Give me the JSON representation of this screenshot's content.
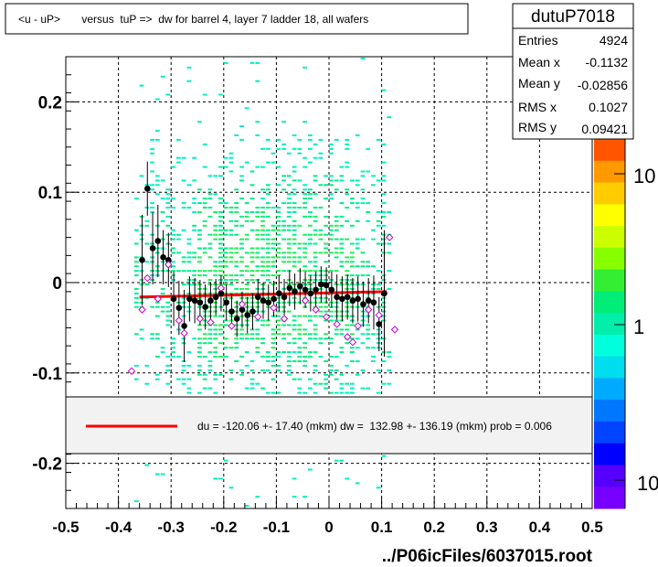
{
  "title": "<u - uP>       versus  tuP =>  dw for barrel 4, layer 7 ladder 18, all wafers",
  "stats": {
    "name": "dutuP7018",
    "rows": [
      {
        "label": "Entries",
        "value": "4924"
      },
      {
        "label": "Mean x",
        "value": "-0.1132"
      },
      {
        "label": "Mean y",
        "value": "-0.02856"
      },
      {
        "label": "RMS x",
        "value": "0.1027"
      },
      {
        "label": "RMS y",
        "value": "0.09421"
      }
    ]
  },
  "legend_text": "du = -120.06 +- 17.40 (mkm) dw =  132.98 +- 136.19 (mkm) prob = 0.006",
  "footer": "../P06icFiles/6037015.root",
  "colors": {
    "fit_line": "#ff0000",
    "profile_black": "#000000",
    "profile_magenta": "#cc00cc",
    "hist_cells": "#00ee88"
  },
  "chart_data": {
    "type": "scatter",
    "xlim": [
      -0.5,
      0.5
    ],
    "ylim": [
      -0.25,
      0.25
    ],
    "x_ticks": [
      "-0.5",
      "-0.4",
      "-0.3",
      "-0.2",
      "-0.1",
      "0",
      "0.1",
      "0.2",
      "0.3",
      "0.4",
      "0.5"
    ],
    "y_ticks": [
      "0.2",
      "0.1",
      "0",
      "-0.1",
      "-0.2"
    ],
    "y_tick_values": [
      0.2,
      0.1,
      0,
      -0.1,
      -0.2
    ],
    "grid": true,
    "z_scale": "log",
    "z_ticks": [
      "10",
      "1",
      "10"
    ],
    "histogram_region": {
      "x": [
        -0.37,
        0.12
      ],
      "y": [
        -0.25,
        0.25
      ]
    },
    "fit_line": {
      "x": [
        -0.36,
        0.11
      ],
      "y": [
        -0.016,
        -0.01
      ]
    },
    "profile_black": [
      {
        "x": -0.355,
        "y": 0.025,
        "err": 0.05
      },
      {
        "x": -0.345,
        "y": 0.104,
        "err": 0.03
      },
      {
        "x": -0.335,
        "y": 0.038,
        "err": 0.04
      },
      {
        "x": -0.325,
        "y": 0.046,
        "err": 0.04
      },
      {
        "x": -0.315,
        "y": 0.028,
        "err": 0.03
      },
      {
        "x": -0.305,
        "y": 0.025,
        "err": 0.03
      },
      {
        "x": -0.295,
        "y": -0.018,
        "err": 0.03
      },
      {
        "x": -0.285,
        "y": -0.028,
        "err": 0.03
      },
      {
        "x": -0.275,
        "y": -0.048,
        "err": 0.04
      },
      {
        "x": -0.265,
        "y": -0.018,
        "err": 0.025
      },
      {
        "x": -0.255,
        "y": -0.02,
        "err": 0.025
      },
      {
        "x": -0.245,
        "y": -0.022,
        "err": 0.025
      },
      {
        "x": -0.235,
        "y": -0.027,
        "err": 0.025
      },
      {
        "x": -0.225,
        "y": -0.02,
        "err": 0.02
      },
      {
        "x": -0.215,
        "y": -0.016,
        "err": 0.02
      },
      {
        "x": -0.205,
        "y": -0.012,
        "err": 0.02
      },
      {
        "x": -0.195,
        "y": -0.022,
        "err": 0.02
      },
      {
        "x": -0.185,
        "y": -0.032,
        "err": 0.02
      },
      {
        "x": -0.175,
        "y": -0.04,
        "err": 0.02
      },
      {
        "x": -0.165,
        "y": -0.03,
        "err": 0.02
      },
      {
        "x": -0.155,
        "y": -0.036,
        "err": 0.02
      },
      {
        "x": -0.145,
        "y": -0.032,
        "err": 0.02
      },
      {
        "x": -0.135,
        "y": -0.016,
        "err": 0.02
      },
      {
        "x": -0.125,
        "y": -0.02,
        "err": 0.02
      },
      {
        "x": -0.115,
        "y": -0.022,
        "err": 0.02
      },
      {
        "x": -0.105,
        "y": -0.018,
        "err": 0.02
      },
      {
        "x": -0.095,
        "y": -0.012,
        "err": 0.02
      },
      {
        "x": -0.085,
        "y": -0.016,
        "err": 0.02
      },
      {
        "x": -0.075,
        "y": -0.006,
        "err": 0.02
      },
      {
        "x": -0.065,
        "y": -0.01,
        "err": 0.02
      },
      {
        "x": -0.055,
        "y": -0.004,
        "err": 0.02
      },
      {
        "x": -0.045,
        "y": -0.008,
        "err": 0.02
      },
      {
        "x": -0.035,
        "y": -0.012,
        "err": 0.02
      },
      {
        "x": -0.025,
        "y": -0.008,
        "err": 0.02
      },
      {
        "x": -0.015,
        "y": -0.002,
        "err": 0.02
      },
      {
        "x": -0.005,
        "y": -0.003,
        "err": 0.02
      },
      {
        "x": 0.005,
        "y": -0.008,
        "err": 0.02
      },
      {
        "x": 0.015,
        "y": -0.016,
        "err": 0.025
      },
      {
        "x": 0.025,
        "y": -0.018,
        "err": 0.025
      },
      {
        "x": 0.035,
        "y": -0.016,
        "err": 0.025
      },
      {
        "x": 0.045,
        "y": -0.02,
        "err": 0.025
      },
      {
        "x": 0.055,
        "y": -0.018,
        "err": 0.025
      },
      {
        "x": 0.065,
        "y": -0.024,
        "err": 0.025
      },
      {
        "x": 0.075,
        "y": -0.02,
        "err": 0.025
      },
      {
        "x": 0.085,
        "y": -0.022,
        "err": 0.03
      },
      {
        "x": 0.095,
        "y": -0.046,
        "err": 0.03
      },
      {
        "x": 0.105,
        "y": -0.012,
        "err": 0.07
      }
    ],
    "profile_magenta": [
      {
        "x": -0.375,
        "y": -0.098
      },
      {
        "x": -0.355,
        "y": -0.03
      },
      {
        "x": -0.345,
        "y": 0.005
      },
      {
        "x": -0.325,
        "y": -0.018
      },
      {
        "x": -0.305,
        "y": 0.02
      },
      {
        "x": -0.285,
        "y": -0.042
      },
      {
        "x": -0.275,
        "y": -0.056
      },
      {
        "x": -0.245,
        "y": -0.04
      },
      {
        "x": -0.225,
        "y": -0.044
      },
      {
        "x": -0.205,
        "y": -0.006
      },
      {
        "x": -0.185,
        "y": -0.048
      },
      {
        "x": -0.165,
        "y": -0.024
      },
      {
        "x": -0.135,
        "y": -0.038
      },
      {
        "x": -0.105,
        "y": -0.028
      },
      {
        "x": -0.085,
        "y": -0.04
      },
      {
        "x": -0.045,
        "y": -0.02
      },
      {
        "x": -0.025,
        "y": -0.03
      },
      {
        "x": -0.005,
        "y": -0.038
      },
      {
        "x": 0.015,
        "y": -0.046
      },
      {
        "x": 0.035,
        "y": -0.06
      },
      {
        "x": 0.045,
        "y": -0.066
      },
      {
        "x": 0.055,
        "y": -0.048
      },
      {
        "x": 0.075,
        "y": -0.03
      },
      {
        "x": 0.095,
        "y": -0.036
      },
      {
        "x": 0.115,
        "y": 0.05
      },
      {
        "x": 0.125,
        "y": -0.052
      }
    ]
  }
}
